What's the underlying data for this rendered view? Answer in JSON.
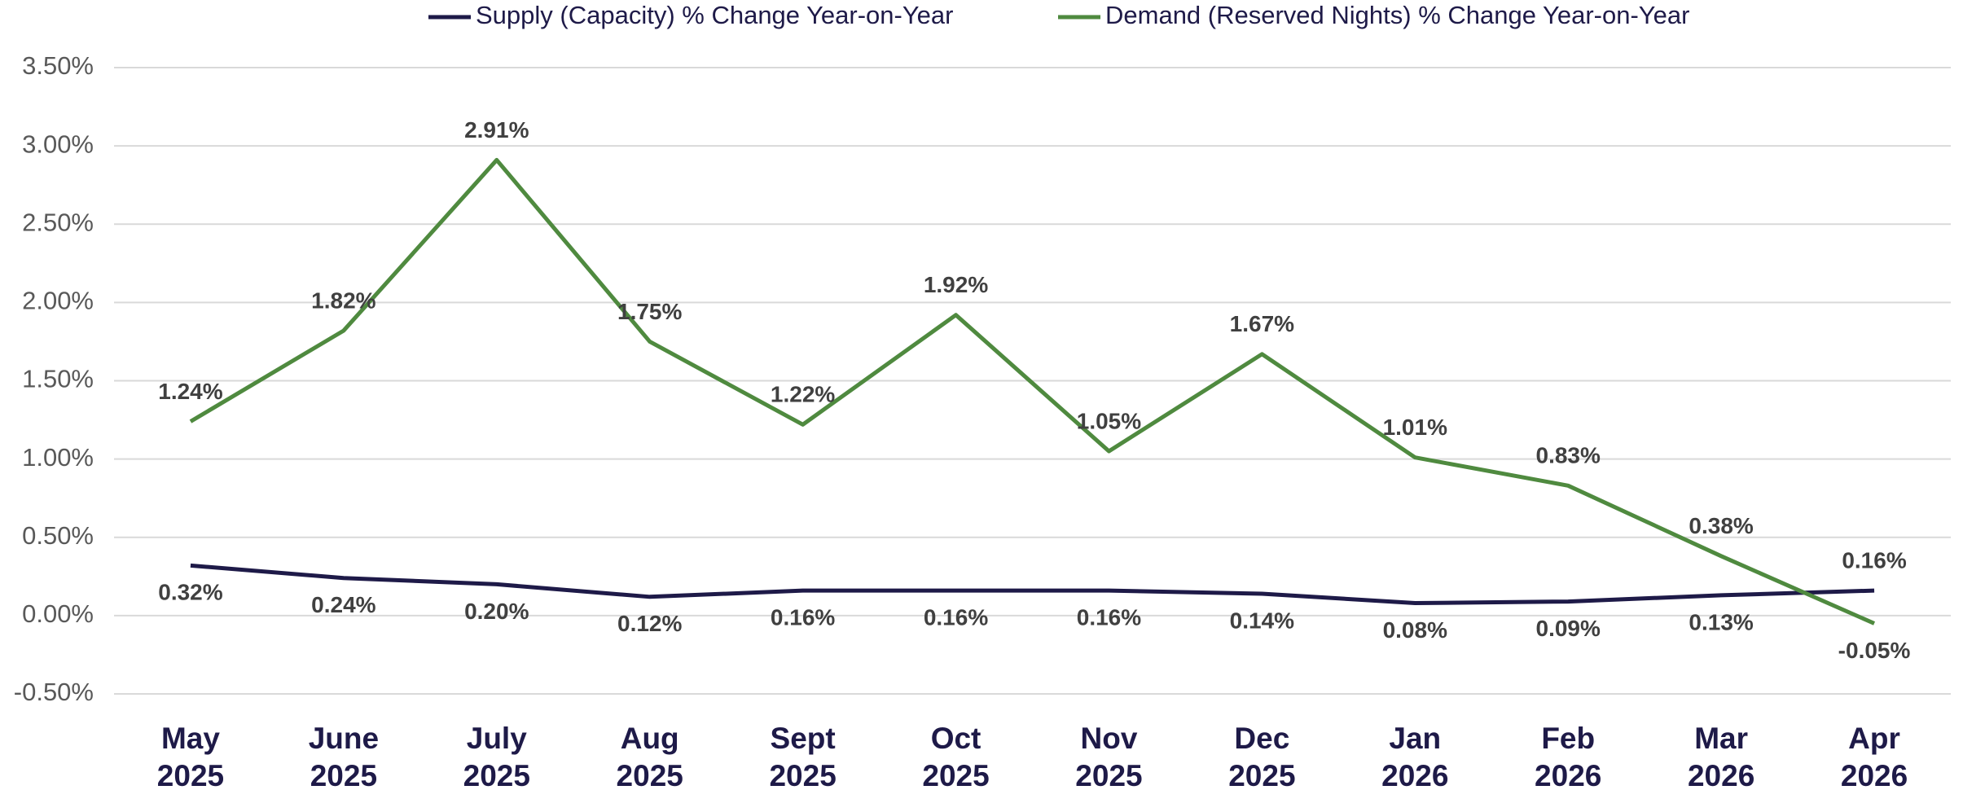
{
  "chart_data": {
    "type": "line",
    "categories": [
      "May 2025",
      "June 2025",
      "July 2025",
      "Aug 2025",
      "Sept 2025",
      "Oct 2025",
      "Nov 2025",
      "Dec 2025",
      "Jan 2026",
      "Feb 2026",
      "Mar 2026",
      "Apr 2026"
    ],
    "series": [
      {
        "name": "Supply (Capacity) % Change Year-on-Year",
        "color": "#1e1a48",
        "values": [
          0.32,
          0.24,
          0.2,
          0.12,
          0.16,
          0.16,
          0.16,
          0.14,
          0.08,
          0.09,
          0.13,
          0.16
        ],
        "value_labels": [
          "0.32%",
          "0.24%",
          "0.20%",
          "0.12%",
          "0.16%",
          "0.16%",
          "0.16%",
          "0.14%",
          "0.08%",
          "0.09%",
          "0.13%",
          "0.16%"
        ]
      },
      {
        "name": "Demand (Reserved Nights) % Change Year-on-Year",
        "color": "#4f8a3f",
        "values": [
          1.24,
          1.82,
          2.91,
          1.75,
          1.22,
          1.92,
          1.05,
          1.67,
          1.01,
          0.83,
          0.38,
          -0.05
        ],
        "value_labels": [
          "1.24%",
          "1.82%",
          "2.91%",
          "1.75%",
          "1.22%",
          "1.92%",
          "1.05%",
          "1.67%",
          "1.01%",
          "0.83%",
          "0.38%",
          "-0.05%"
        ]
      }
    ],
    "ylim": [
      -0.5,
      3.5
    ],
    "yticks": [
      {
        "value": -0.5,
        "label": "-0.50%"
      },
      {
        "value": 0,
        "label": "0.00%"
      },
      {
        "value": 0.5,
        "label": "0.50%"
      },
      {
        "value": 1,
        "label": "1.00%"
      },
      {
        "value": 1.5,
        "label": "1.50%"
      },
      {
        "value": 2,
        "label": "2.00%"
      },
      {
        "value": 2.5,
        "label": "2.50%"
      },
      {
        "value": 3,
        "label": "3.00%"
      },
      {
        "value": 3.5,
        "label": "3.50%"
      }
    ],
    "grid": true,
    "legend": "top"
  }
}
